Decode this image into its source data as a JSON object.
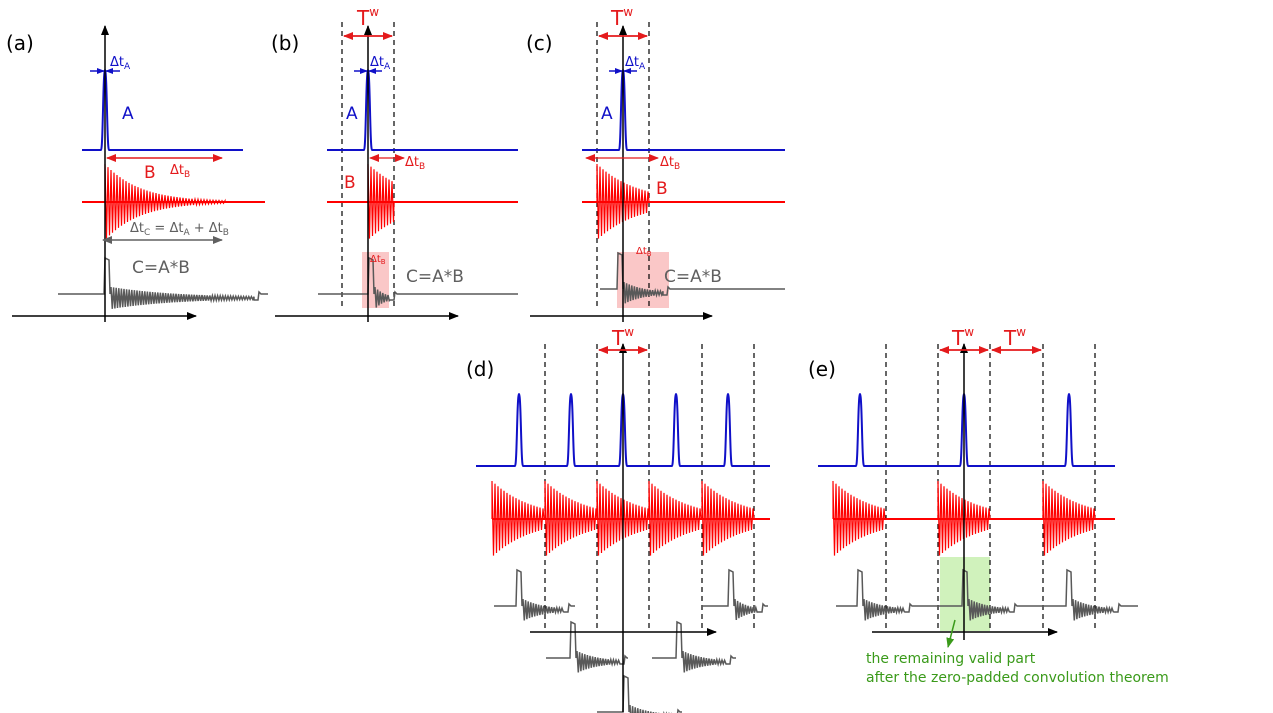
{
  "colors": {
    "pulse": "#1010c8",
    "decay": "#ff0000",
    "result": "#595959",
    "window": "#e41a1c",
    "overlap_fill": "#f8b4b4",
    "valid_fill": "#c8f0b0",
    "note": "#3a9a1a"
  },
  "panels": {
    "a": {
      "label": "(a)",
      "A": "A",
      "B": "B",
      "dtA": "Δt",
      "dtA_sub": "A",
      "dtB": "Δt",
      "dtB_sub": "B",
      "dtC_main": "Δt",
      "dtC_sub": "C",
      "dtC_eq": " = Δt",
      "dtC_subA": "A",
      "dtC_plus": " + Δt",
      "dtC_subB": "B",
      "C": "C=A*B"
    },
    "b": {
      "label": "(b)",
      "A": "A",
      "B": "B",
      "Tw": "T",
      "Tw_sup": "w",
      "dtA": "Δt",
      "dtA_sub": "A",
      "dtB": "Δt",
      "dtB_sub": "B",
      "dtB2": "Δt",
      "dtB2_sub": "B",
      "C": "C=A*B"
    },
    "c": {
      "label": "(c)",
      "A": "A",
      "B": "B",
      "Tw": "T",
      "Tw_sup": "w",
      "dtA": "Δt",
      "dtA_sub": "A",
      "dtB": "Δt",
      "dtB_sub": "B",
      "dtB2": "Δt",
      "dtB2_sub": "B",
      "C": "C=A*B"
    },
    "d": {
      "label": "(d)",
      "Tw": "T",
      "Tw_sup": "w"
    },
    "e": {
      "label": "(e)",
      "Tw1": "T",
      "Tw1_sup": "w",
      "Tw2": "T",
      "Tw2_sup": "w"
    }
  },
  "note": {
    "line1": "the remaining valid part",
    "line2": "after the zero-padded convolution theorem"
  }
}
